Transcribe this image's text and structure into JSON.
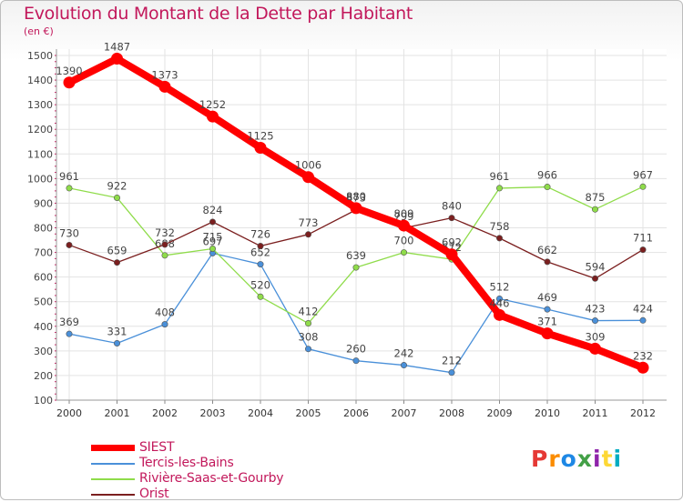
{
  "title": "Evolution du Montant de la Dette par Habitant",
  "subtitle": "(en €)",
  "logo": {
    "text": "Proxiti",
    "colors": [
      "#e53935",
      "#fb8c00",
      "#1e88e5",
      "#43a047",
      "#8e24aa",
      "#fdd835",
      "#00acc1"
    ]
  },
  "chart_data": {
    "type": "line",
    "title": "Evolution du Montant de la Dette par Habitant",
    "ylabel": "(en €)",
    "x": [
      "2000",
      "2001",
      "2002",
      "2003",
      "2004",
      "2005",
      "2006",
      "2007",
      "2008",
      "2009",
      "2010",
      "2011",
      "2012"
    ],
    "ylim": [
      100,
      1500
    ],
    "yticks": [
      100,
      200,
      300,
      400,
      500,
      600,
      700,
      800,
      900,
      1000,
      1100,
      1200,
      1300,
      1400,
      1500
    ],
    "grid": true,
    "legend": "bottom-left",
    "series": [
      {
        "name": "SIEST",
        "color": "#ff0000",
        "emphasis": true,
        "values": [
          1390,
          1487,
          1373,
          1252,
          1125,
          1006,
          880,
          809,
          692,
          446,
          371,
          309,
          232
        ],
        "labels": [
          "1390",
          "1487",
          "1373",
          "1252",
          "1125",
          "1006",
          "880",
          "809",
          "692",
          "446",
          "371",
          "309",
          "232"
        ]
      },
      {
        "name": "Tercis-les-Bains",
        "color": "#4a90d9",
        "values": [
          369,
          331,
          408,
          697,
          652,
          308,
          260,
          242,
          212,
          512,
          469,
          423,
          424
        ],
        "labels": [
          "369",
          "331",
          "408",
          "697",
          "652",
          "308",
          "260",
          "242",
          "212",
          "512",
          "469",
          "423",
          "424"
        ]
      },
      {
        "name": "Rivière-Saas-et-Gourby",
        "color": "#8fdc4a",
        "values": [
          961,
          922,
          688,
          715,
          520,
          412,
          639,
          700,
          672,
          961,
          966,
          875,
          967
        ],
        "labels": [
          "961",
          "922",
          "688",
          "715",
          "520",
          "412",
          "639",
          "700",
          "672",
          "961",
          "966",
          "875",
          "967"
        ]
      },
      {
        "name": "Orist",
        "color": "#7b1f1f",
        "values": [
          730,
          659,
          732,
          824,
          726,
          773,
          873,
          799,
          840,
          758,
          662,
          594,
          711
        ],
        "labels": [
          "730",
          "659",
          "732",
          "824",
          "726",
          "773",
          "873",
          "799",
          "840",
          "758",
          "662",
          "594",
          "711"
        ]
      }
    ]
  }
}
